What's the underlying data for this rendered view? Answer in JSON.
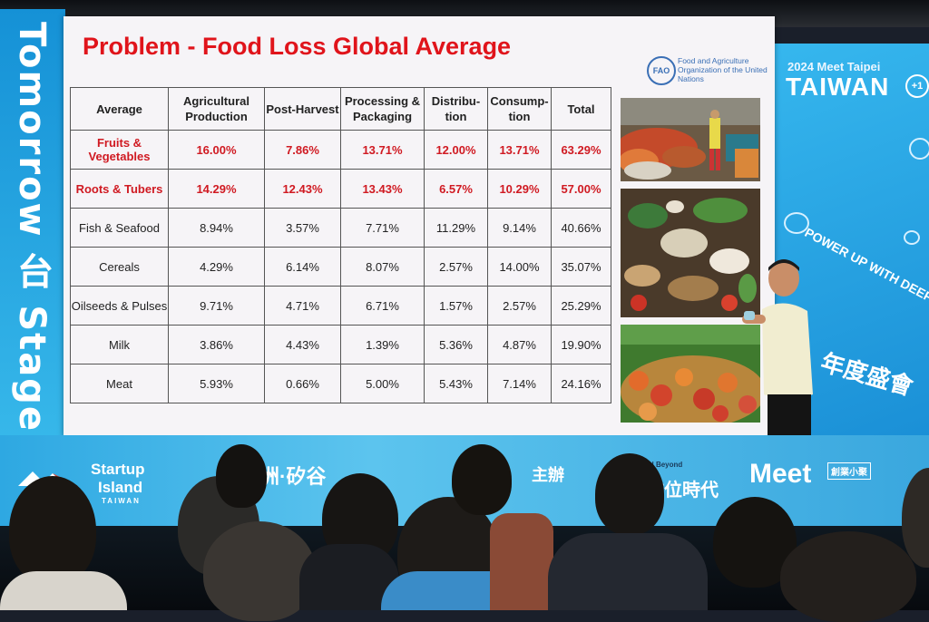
{
  "left_banner": {
    "text": "Tomorrow 台 Stage"
  },
  "right_banner": {
    "event": "2024 Meet Taipei",
    "logo": "TAIWAN",
    "logo_plus": "+1",
    "slogan": "POWER UP WITH DEEP TECH",
    "chinese": "年度盛會"
  },
  "slide": {
    "title": "Problem - Food Loss Global Average",
    "fao_emblem": "FAO",
    "fao_org": "Food and Agriculture Organization of the United Nations",
    "table": {
      "headers": [
        "Average",
        "Agricultural Production",
        "Post-Harvest",
        "Processing & Packaging",
        "Distribu-tion",
        "Consump-tion",
        "Total"
      ],
      "rows": [
        {
          "label": "Fruits & Vegetables",
          "values": [
            "16.00%",
            "7.86%",
            "13.71%",
            "12.00%",
            "13.71%",
            "63.29%"
          ]
        },
        {
          "label": "Roots & Tubers",
          "values": [
            "14.29%",
            "12.43%",
            "13.43%",
            "6.57%",
            "10.29%",
            "57.00%"
          ]
        },
        {
          "label": "Fish & Seafood",
          "values": [
            "8.94%",
            "3.57%",
            "7.71%",
            "11.29%",
            "9.14%",
            "40.66%"
          ]
        },
        {
          "label": "Cereals",
          "values": [
            "4.29%",
            "6.14%",
            "8.07%",
            "2.57%",
            "14.00%",
            "35.07%"
          ]
        },
        {
          "label": "Oilseeds & Pulses",
          "values": [
            "9.71%",
            "4.71%",
            "6.71%",
            "1.57%",
            "2.57%",
            "25.29%"
          ]
        },
        {
          "label": "Milk",
          "values": [
            "3.86%",
            "4.43%",
            "1.39%",
            "5.36%",
            "4.87%",
            "19.90%"
          ]
        },
        {
          "label": "Meat",
          "values": [
            "5.93%",
            "0.66%",
            "5.00%",
            "5.43%",
            "7.14%",
            "24.16%"
          ]
        }
      ]
    }
  },
  "bottom_banner": {
    "startup": "Startup",
    "island": "Island",
    "taiwan": "TAIWAN",
    "asvda": "洲·矽谷",
    "organizer": "主辦",
    "young": "Young and Beyond",
    "era": "數位時代",
    "meet": "Meet",
    "meet_tag": "創業小聚"
  }
}
